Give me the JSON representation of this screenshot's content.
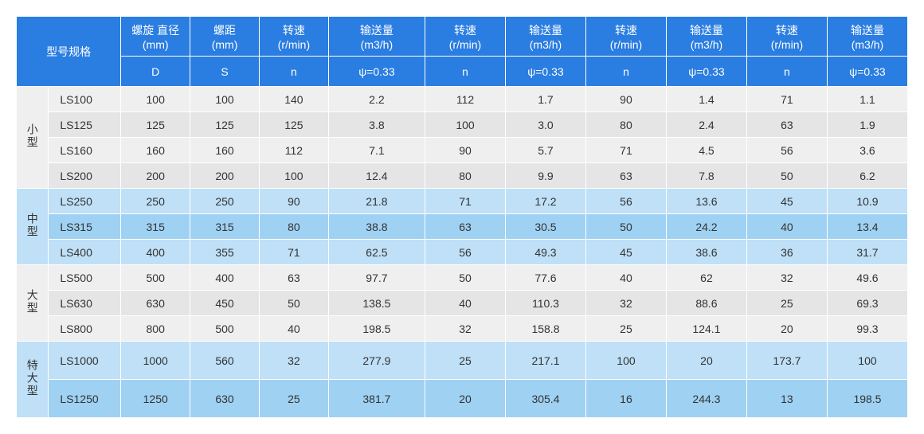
{
  "colors": {
    "header_bg": "#2a7de1",
    "header_text": "#ffffff",
    "gray_light": "#efefef",
    "gray_dark": "#e5e5e5",
    "blue_light": "#bfe0f7",
    "blue_dark": "#9fd1f3",
    "border": "#ffffff",
    "body_text": "#333333"
  },
  "header": {
    "model_spec": "型号规格",
    "cols": [
      {
        "top1": "螺旋 直径",
        "top2": "(mm)",
        "sub": "D"
      },
      {
        "top1": "螺距",
        "top2": "(mm)",
        "sub": "S"
      },
      {
        "top1": "转速",
        "top2": "(r/min)",
        "sub": "n"
      },
      {
        "top1": "输送量",
        "top2": "(m3/h)",
        "sub": "ψ=0.33"
      },
      {
        "top1": "转速",
        "top2": "(r/min)",
        "sub": "n"
      },
      {
        "top1": "输送量",
        "top2": "(m3/h)",
        "sub": "ψ=0.33"
      },
      {
        "top1": "转速",
        "top2": "(r/min)",
        "sub": "n"
      },
      {
        "top1": "输送量",
        "top2": "(m3/h)",
        "sub": "ψ=0.33"
      },
      {
        "top1": "转速",
        "top2": "(r/min)",
        "sub": "n"
      },
      {
        "top1": "输送量",
        "top2": "(m3/h)",
        "sub": "ψ=0.33"
      }
    ]
  },
  "groups": [
    {
      "label": "小型",
      "scheme": "gray",
      "rows": [
        {
          "model": "LS100",
          "vals": [
            "100",
            "100",
            "140",
            "2.2",
            "112",
            "1.7",
            "90",
            "1.4",
            "71",
            "1.1"
          ]
        },
        {
          "model": "LS125",
          "vals": [
            "125",
            "125",
            "125",
            "3.8",
            "100",
            "3.0",
            "80",
            "2.4",
            "63",
            "1.9"
          ]
        },
        {
          "model": "LS160",
          "vals": [
            "160",
            "160",
            "112",
            "7.1",
            "90",
            "5.7",
            "71",
            "4.5",
            "56",
            "3.6"
          ]
        },
        {
          "model": "LS200",
          "vals": [
            "200",
            "200",
            "100",
            "12.4",
            "80",
            "9.9",
            "63",
            "7.8",
            "50",
            "6.2"
          ]
        }
      ]
    },
    {
      "label": "中型",
      "scheme": "blue",
      "rows": [
        {
          "model": "LS250",
          "vals": [
            "250",
            "250",
            "90",
            "21.8",
            "71",
            "17.2",
            "56",
            "13.6",
            "45",
            "10.9"
          ]
        },
        {
          "model": "LS315",
          "vals": [
            "315",
            "315",
            "80",
            "38.8",
            "63",
            "30.5",
            "50",
            "24.2",
            "40",
            "13.4"
          ]
        },
        {
          "model": "LS400",
          "vals": [
            "400",
            "355",
            "71",
            "62.5",
            "56",
            "49.3",
            "45",
            "38.6",
            "36",
            "31.7"
          ]
        }
      ]
    },
    {
      "label": "大型",
      "scheme": "gray",
      "rows": [
        {
          "model": "LS500",
          "vals": [
            "500",
            "400",
            "63",
            "97.7",
            "50",
            "77.6",
            "40",
            "62",
            "32",
            "49.6"
          ]
        },
        {
          "model": "LS630",
          "vals": [
            "630",
            "450",
            "50",
            "138.5",
            "40",
            "110.3",
            "32",
            "88.6",
            "25",
            "69.3"
          ]
        },
        {
          "model": "LS800",
          "vals": [
            "800",
            "500",
            "40",
            "198.5",
            "32",
            "158.8",
            "25",
            "124.1",
            "20",
            "99.3"
          ]
        }
      ]
    },
    {
      "label": "特大型",
      "scheme": "blue",
      "tall": true,
      "rows": [
        {
          "model": "LS1000",
          "vals": [
            "1000",
            "560",
            "32",
            "277.9",
            "25",
            "217.1",
            "100",
            "20",
            "173.7",
            "100"
          ]
        },
        {
          "model": "LS1250",
          "vals": [
            "1250",
            "630",
            "25",
            "381.7",
            "20",
            "305.4",
            "16",
            "244.3",
            "13",
            "198.5"
          ]
        }
      ]
    }
  ]
}
